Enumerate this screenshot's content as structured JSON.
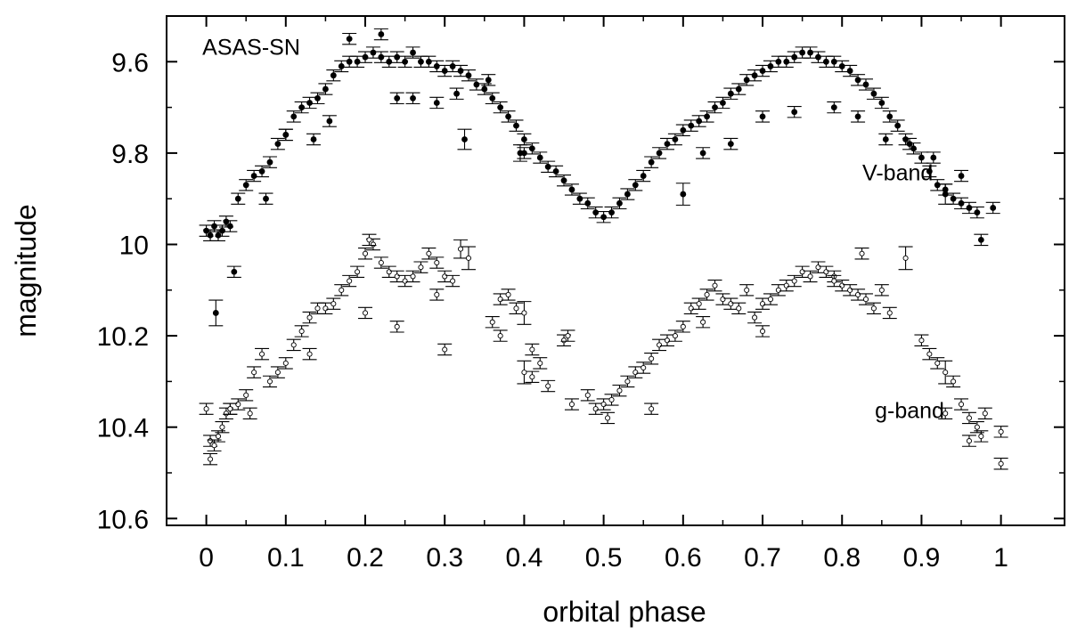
{
  "chart_data": {
    "type": "scatter",
    "title": "",
    "xlabel": "orbital phase",
    "ylabel": "magnitude",
    "xlim": [
      -0.05,
      1.08
    ],
    "ylim": [
      10.615,
      9.5
    ],
    "y_inverted": true,
    "grid": false,
    "x_ticks": [
      0,
      0.1,
      0.2,
      0.3,
      0.4,
      0.5,
      0.6,
      0.7,
      0.8,
      0.9,
      1
    ],
    "x_tick_labels": [
      "0",
      "0.1",
      "0.2",
      "0.3",
      "0.4",
      "0.5",
      "0.6",
      "0.7",
      "0.8",
      "0.9",
      "1"
    ],
    "y_ticks": [
      9.6,
      9.8,
      10,
      10.2,
      10.4,
      10.6
    ],
    "y_tick_labels": [
      "9.6",
      "9.8",
      "10",
      "10.2",
      "10.4",
      "10.6"
    ],
    "annotations": [
      {
        "text": "ASAS-SN",
        "x": -0.005,
        "y": 9.585
      },
      {
        "text": "V-band",
        "x": 0.87,
        "y": 9.86
      },
      {
        "text": "g-band",
        "x": 0.885,
        "y": 10.38
      }
    ],
    "series": [
      {
        "marker": "filled-circle",
        "color": "#000000",
        "x": [
          0.0,
          0.005,
          0.01,
          0.015,
          0.02,
          0.025,
          0.03,
          0.04,
          0.05,
          0.06,
          0.07,
          0.08,
          0.09,
          0.1,
          0.11,
          0.12,
          0.13,
          0.14,
          0.15,
          0.16,
          0.17,
          0.18,
          0.19,
          0.2,
          0.21,
          0.22,
          0.23,
          0.24,
          0.25,
          0.26,
          0.27,
          0.28,
          0.29,
          0.3,
          0.31,
          0.32,
          0.33,
          0.34,
          0.35,
          0.36,
          0.37,
          0.38,
          0.39,
          0.4,
          0.41,
          0.42,
          0.43,
          0.44,
          0.45,
          0.46,
          0.47,
          0.48,
          0.49,
          0.5,
          0.51,
          0.52,
          0.53,
          0.54,
          0.55,
          0.56,
          0.57,
          0.58,
          0.59,
          0.6,
          0.61,
          0.62,
          0.63,
          0.64,
          0.65,
          0.66,
          0.67,
          0.68,
          0.69,
          0.7,
          0.71,
          0.72,
          0.73,
          0.74,
          0.75,
          0.76,
          0.77,
          0.78,
          0.79,
          0.8,
          0.81,
          0.82,
          0.83,
          0.84,
          0.85,
          0.86,
          0.87,
          0.88,
          0.89,
          0.9,
          0.91,
          0.92,
          0.93,
          0.94,
          0.95,
          0.96,
          0.97,
          0.012,
          0.035,
          0.075,
          0.135,
          0.155,
          0.18,
          0.22,
          0.24,
          0.26,
          0.29,
          0.315,
          0.325,
          0.355,
          0.395,
          0.6,
          0.625,
          0.66,
          0.7,
          0.74,
          0.79,
          0.82,
          0.855,
          0.885,
          0.93,
          0.975,
          0.95,
          0.915,
          0.99,
          0.1,
          0.4
        ],
        "y": [
          9.97,
          9.98,
          9.96,
          9.98,
          9.97,
          9.95,
          9.96,
          9.9,
          9.87,
          9.85,
          9.84,
          9.82,
          9.78,
          9.76,
          9.72,
          9.7,
          9.69,
          9.68,
          9.66,
          9.63,
          9.61,
          9.6,
          9.6,
          9.59,
          9.58,
          9.59,
          9.6,
          9.59,
          9.6,
          9.58,
          9.6,
          9.6,
          9.61,
          9.62,
          9.61,
          9.62,
          9.63,
          9.65,
          9.66,
          9.68,
          9.7,
          9.72,
          9.74,
          9.77,
          9.79,
          9.81,
          9.83,
          9.84,
          9.86,
          9.88,
          9.9,
          9.91,
          9.93,
          9.94,
          9.93,
          9.91,
          9.89,
          9.87,
          9.85,
          9.82,
          9.8,
          9.78,
          9.77,
          9.75,
          9.74,
          9.73,
          9.72,
          9.7,
          9.69,
          9.67,
          9.66,
          9.64,
          9.63,
          9.62,
          9.61,
          9.6,
          9.6,
          9.59,
          9.58,
          9.58,
          9.59,
          9.6,
          9.6,
          9.61,
          9.62,
          9.64,
          9.65,
          9.67,
          9.69,
          9.72,
          9.74,
          9.77,
          9.79,
          9.81,
          9.84,
          9.87,
          9.88,
          9.9,
          9.91,
          9.92,
          9.93,
          10.15,
          10.06,
          9.9,
          9.77,
          9.73,
          9.55,
          9.54,
          9.68,
          9.68,
          9.69,
          9.67,
          9.77,
          9.64,
          9.8,
          9.89,
          9.8,
          9.78,
          9.72,
          9.71,
          9.7,
          9.72,
          9.77,
          9.78,
          9.89,
          9.99,
          9.85,
          9.81,
          9.92,
          9.76,
          9.8
        ],
        "yerr": [
          0.012,
          0.012,
          0.012,
          0.012,
          0.012,
          0.012,
          0.012,
          0.012,
          0.012,
          0.012,
          0.012,
          0.012,
          0.012,
          0.012,
          0.012,
          0.012,
          0.012,
          0.012,
          0.012,
          0.012,
          0.012,
          0.012,
          0.012,
          0.012,
          0.012,
          0.012,
          0.012,
          0.012,
          0.012,
          0.012,
          0.012,
          0.012,
          0.012,
          0.012,
          0.012,
          0.012,
          0.012,
          0.012,
          0.012,
          0.012,
          0.012,
          0.012,
          0.012,
          0.012,
          0.012,
          0.012,
          0.012,
          0.012,
          0.012,
          0.012,
          0.012,
          0.012,
          0.012,
          0.012,
          0.012,
          0.012,
          0.012,
          0.012,
          0.012,
          0.012,
          0.012,
          0.012,
          0.012,
          0.012,
          0.012,
          0.012,
          0.012,
          0.012,
          0.012,
          0.012,
          0.012,
          0.012,
          0.012,
          0.012,
          0.012,
          0.012,
          0.012,
          0.012,
          0.012,
          0.012,
          0.012,
          0.012,
          0.012,
          0.012,
          0.012,
          0.012,
          0.012,
          0.012,
          0.012,
          0.012,
          0.012,
          0.012,
          0.012,
          0.012,
          0.012,
          0.012,
          0.012,
          0.012,
          0.012,
          0.012,
          0.012,
          0.028,
          0.012,
          0.012,
          0.012,
          0.012,
          0.012,
          0.012,
          0.012,
          0.012,
          0.012,
          0.012,
          0.022,
          0.012,
          0.018,
          0.024,
          0.012,
          0.012,
          0.012,
          0.012,
          0.012,
          0.012,
          0.012,
          0.012,
          0.022,
          0.012,
          0.012,
          0.012,
          0.012,
          0.012,
          0.012
        ]
      },
      {
        "marker": "open-circle",
        "color": "#000000",
        "x": [
          0.0,
          0.005,
          0.01,
          0.015,
          0.02,
          0.025,
          0.03,
          0.04,
          0.05,
          0.06,
          0.07,
          0.08,
          0.09,
          0.1,
          0.11,
          0.12,
          0.13,
          0.14,
          0.15,
          0.16,
          0.17,
          0.18,
          0.19,
          0.2,
          0.21,
          0.22,
          0.23,
          0.24,
          0.25,
          0.26,
          0.27,
          0.28,
          0.29,
          0.3,
          0.31,
          0.32,
          0.33,
          0.36,
          0.37,
          0.38,
          0.39,
          0.4,
          0.41,
          0.42,
          0.43,
          0.45,
          0.46,
          0.48,
          0.49,
          0.5,
          0.51,
          0.52,
          0.53,
          0.54,
          0.55,
          0.56,
          0.57,
          0.58,
          0.59,
          0.6,
          0.61,
          0.62,
          0.63,
          0.64,
          0.65,
          0.66,
          0.67,
          0.68,
          0.69,
          0.7,
          0.71,
          0.72,
          0.73,
          0.74,
          0.75,
          0.76,
          0.77,
          0.78,
          0.79,
          0.8,
          0.81,
          0.82,
          0.83,
          0.84,
          0.85,
          0.86,
          0.88,
          0.9,
          0.91,
          0.92,
          0.93,
          0.94,
          0.95,
          0.96,
          0.97,
          0.98,
          1.0,
          0.005,
          0.03,
          0.055,
          0.13,
          0.2,
          0.24,
          0.29,
          0.3,
          0.37,
          0.41,
          0.455,
          0.505,
          0.56,
          0.625,
          0.7,
          0.79,
          0.825,
          0.93,
          0.96,
          0.975,
          1.0,
          0.4,
          0.205
        ],
        "y": [
          10.36,
          10.43,
          10.44,
          10.42,
          10.4,
          10.37,
          10.36,
          10.35,
          10.33,
          10.28,
          10.24,
          10.3,
          10.28,
          10.26,
          10.22,
          10.19,
          10.16,
          10.14,
          10.14,
          10.13,
          10.1,
          10.08,
          10.06,
          10.02,
          10.0,
          10.04,
          10.06,
          10.07,
          10.08,
          10.07,
          10.05,
          10.02,
          10.04,
          10.07,
          10.08,
          10.01,
          10.03,
          10.17,
          10.12,
          10.11,
          10.14,
          10.15,
          10.23,
          10.26,
          10.31,
          10.21,
          10.35,
          10.33,
          10.36,
          10.35,
          10.34,
          10.32,
          10.3,
          10.28,
          10.27,
          10.25,
          10.22,
          10.21,
          10.2,
          10.18,
          10.14,
          10.13,
          10.11,
          10.09,
          10.12,
          10.13,
          10.14,
          10.1,
          10.16,
          10.13,
          10.12,
          10.1,
          10.09,
          10.08,
          10.06,
          10.07,
          10.05,
          10.06,
          10.07,
          10.09,
          10.1,
          10.11,
          10.12,
          10.14,
          10.1,
          10.15,
          10.03,
          10.21,
          10.24,
          10.26,
          10.28,
          10.3,
          10.35,
          10.38,
          10.4,
          10.37,
          10.41,
          10.47,
          10.36,
          10.37,
          10.24,
          10.15,
          10.18,
          10.11,
          10.23,
          10.2,
          10.29,
          10.2,
          10.38,
          10.36,
          10.17,
          10.19,
          10.08,
          10.02,
          10.37,
          10.43,
          10.42,
          10.48,
          10.28,
          9.99
        ],
        "yerr": [
          0.012,
          0.012,
          0.012,
          0.012,
          0.012,
          0.012,
          0.012,
          0.012,
          0.012,
          0.012,
          0.012,
          0.012,
          0.012,
          0.012,
          0.012,
          0.012,
          0.012,
          0.012,
          0.012,
          0.012,
          0.012,
          0.012,
          0.012,
          0.012,
          0.012,
          0.012,
          0.012,
          0.012,
          0.012,
          0.012,
          0.012,
          0.012,
          0.012,
          0.012,
          0.012,
          0.02,
          0.025,
          0.012,
          0.012,
          0.012,
          0.012,
          0.025,
          0.012,
          0.012,
          0.012,
          0.012,
          0.012,
          0.012,
          0.012,
          0.012,
          0.012,
          0.012,
          0.012,
          0.012,
          0.012,
          0.012,
          0.012,
          0.012,
          0.012,
          0.012,
          0.012,
          0.012,
          0.012,
          0.012,
          0.012,
          0.012,
          0.012,
          0.012,
          0.012,
          0.012,
          0.012,
          0.012,
          0.012,
          0.012,
          0.012,
          0.012,
          0.012,
          0.012,
          0.012,
          0.012,
          0.012,
          0.012,
          0.012,
          0.012,
          0.012,
          0.012,
          0.025,
          0.012,
          0.012,
          0.012,
          0.025,
          0.012,
          0.012,
          0.012,
          0.012,
          0.012,
          0.012,
          0.012,
          0.012,
          0.012,
          0.012,
          0.012,
          0.012,
          0.012,
          0.012,
          0.012,
          0.012,
          0.012,
          0.012,
          0.012,
          0.012,
          0.012,
          0.012,
          0.012,
          0.012,
          0.012,
          0.012,
          0.012,
          0.025,
          0.012
        ]
      }
    ]
  }
}
